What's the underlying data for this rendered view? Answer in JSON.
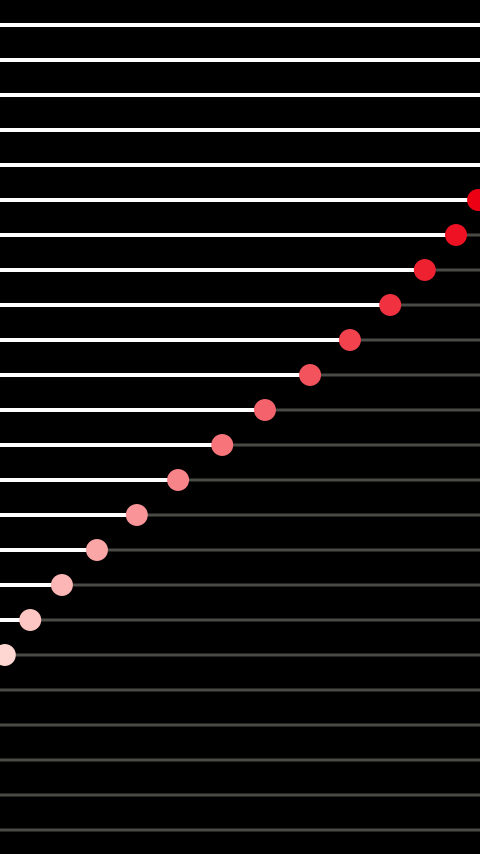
{
  "sliders": [
    {
      "value": 100
    },
    {
      "value": 100
    },
    {
      "value": 100
    },
    {
      "value": 100
    },
    {
      "value": 100
    },
    {
      "value": 99.6
    },
    {
      "value": 95
    },
    {
      "value": 88.5
    },
    {
      "value": 81.3
    },
    {
      "value": 72.9
    },
    {
      "value": 64.6
    },
    {
      "value": 55.2
    },
    {
      "value": 46.3
    },
    {
      "value": 37.1
    },
    {
      "value": 28.5
    },
    {
      "value": 20.2
    },
    {
      "value": 12.9
    },
    {
      "value": 6.3
    },
    {
      "value": 1
    },
    {
      "value": 0
    },
    {
      "value": 0
    },
    {
      "value": 0
    },
    {
      "value": 0
    },
    {
      "value": 0
    }
  ]
}
